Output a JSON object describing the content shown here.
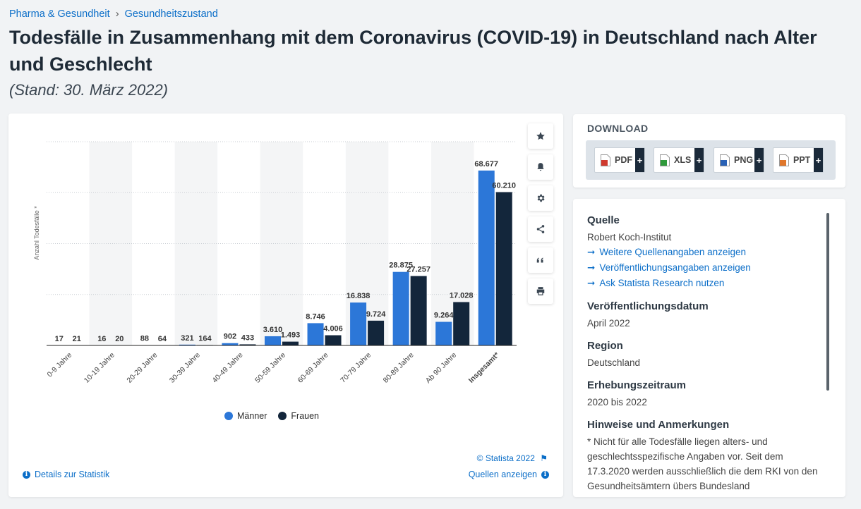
{
  "breadcrumb": {
    "item1": "Pharma & Gesundheit",
    "separator": "›",
    "item2": "Gesundheitszustand"
  },
  "page_title": "Todesfälle in Zusammenhang mit dem Coronavirus (COVID-19) in Deutschland nach Alter und Geschlecht",
  "page_subtitle": "(Stand: 30. März 2022)",
  "toolbar": {
    "icons": [
      "star-icon",
      "bell-icon",
      "gear-icon",
      "share-icon",
      "quote-icon",
      "print-icon"
    ]
  },
  "chart_data": {
    "type": "bar",
    "ylabel": "Anzahl Todesfälle *",
    "ylim": [
      0,
      80000
    ],
    "grid": true,
    "legend_position": "bottom",
    "categories": [
      "0-9 Jahre",
      "10-19 Jahre",
      "20-29 Jahre",
      "30-39 Jahre",
      "40-49 Jahre",
      "50-59 Jahre",
      "60-69 Jahre",
      "70-79 Jahre",
      "80-89 Jahre",
      "Ab 90 Jahre",
      "Insgesamt*"
    ],
    "series": [
      {
        "name": "Männer",
        "color": "#2c77d8",
        "values": [
          17,
          16,
          88,
          321,
          902,
          3610,
          8746,
          16838,
          28875,
          9264,
          68677
        ],
        "labels": [
          "17",
          "16",
          "88",
          "321",
          "902",
          "3.610",
          "8.746",
          "16.838",
          "28.875",
          "9.264",
          "68.677"
        ]
      },
      {
        "name": "Frauen",
        "color": "#13263b",
        "values": [
          21,
          20,
          64,
          164,
          433,
          1493,
          4006,
          9724,
          27257,
          17028,
          60210
        ],
        "labels": [
          "21",
          "20",
          "64",
          "164",
          "433",
          "1.493",
          "4.006",
          "9.724",
          "27.257",
          "17.028",
          "60.210"
        ]
      }
    ]
  },
  "chart_footer": {
    "copyright": "© Statista 2022",
    "details_link": "Details zur Statistik",
    "sources_link": "Quellen anzeigen"
  },
  "download": {
    "title": "DOWNLOAD",
    "formats": [
      {
        "label": "PDF",
        "color": "#d03a2e",
        "plus": "+"
      },
      {
        "label": "XLS",
        "color": "#2f9a3b",
        "plus": "+"
      },
      {
        "label": "PNG",
        "color": "#2a62b6",
        "plus": "+"
      },
      {
        "label": "PPT",
        "color": "#e0772b",
        "plus": "+"
      }
    ]
  },
  "info": {
    "source_heading": "Quelle",
    "source_value": "Robert Koch-Institut",
    "links": [
      "Weitere Quellenangaben anzeigen",
      "Veröffentlichungsangaben anzeigen",
      "Ask Statista Research nutzen"
    ],
    "publication_heading": "Veröffentlichungsdatum",
    "publication_value": "April 2022",
    "region_heading": "Region",
    "region_value": "Deutschland",
    "period_heading": "Erhebungszeitraum",
    "period_value": "2020 bis 2022",
    "notes_heading": "Hinweise und Anmerkungen",
    "notes_value": "* Nicht für alle Todesfälle liegen alters- und geschlechtsspezifische Angaben vor. Seit dem 17.3.2020 werden ausschließlich die dem RKI von den Gesundheitsämtern übers Bundesland"
  }
}
